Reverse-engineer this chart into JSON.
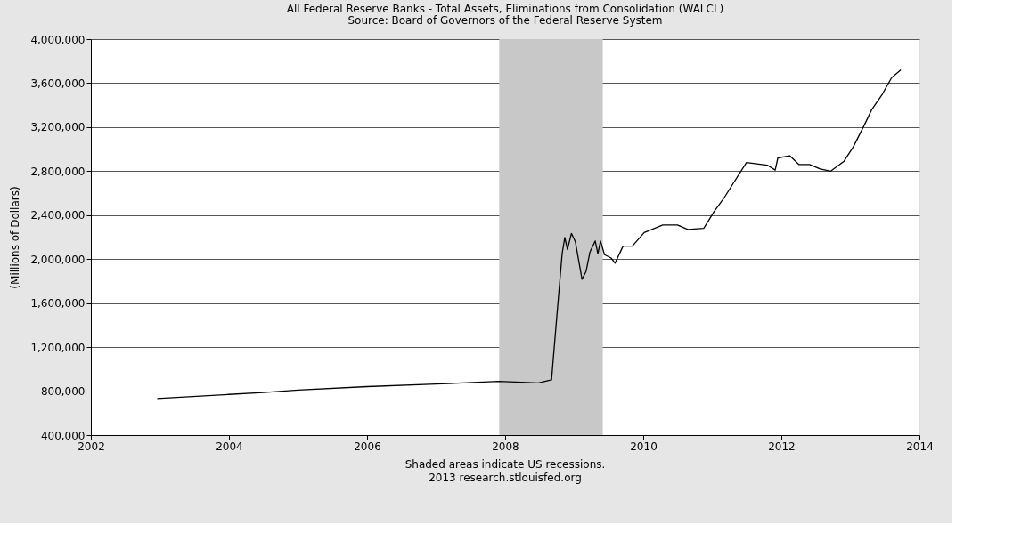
{
  "chart_data": {
    "type": "line",
    "title": "All Federal Reserve Banks - Total Assets, Eliminations from Consolidation (WALCL)",
    "subtitle": "Source: Board of Governors of the Federal Reserve System",
    "ylabel": "(Millions of Dollars)",
    "annotations": [
      "Shaded areas indicate US recessions.",
      "2013 research.stlouisfed.org"
    ],
    "x": [
      "2002-12-18",
      "2004-01-01",
      "2004-07-01",
      "2005-01-01",
      "2006-01-01",
      "2007-01-01",
      "2007-11-28",
      "2008-06-25",
      "2008-09-03",
      "2008-10-01",
      "2008-10-29",
      "2008-11-12",
      "2008-11-26",
      "2008-12-17",
      "2009-01-07",
      "2009-02-11",
      "2009-03-04",
      "2009-03-25",
      "2009-04-22",
      "2009-05-06",
      "2009-05-20",
      "2009-06-10",
      "2009-07-15",
      "2009-08-05",
      "2009-09-16",
      "2009-11-04",
      "2010-01-06",
      "2010-04-14",
      "2010-07-01",
      "2010-08-25",
      "2010-11-17",
      "2011-01-12",
      "2011-03-02",
      "2011-07-01",
      "2011-10-19",
      "2011-11-30",
      "2011-12-14",
      "2012-02-15",
      "2012-04-04",
      "2012-05-30",
      "2012-07-25",
      "2012-09-19",
      "2012-11-28",
      "2013-01-16",
      "2013-03-13",
      "2013-04-24",
      "2013-06-19",
      "2013-08-07",
      "2013-09-25"
    ],
    "series": [
      {
        "color": "#000000",
        "values": [
          733000,
          770000,
          787000,
          810000,
          841000,
          864000,
          888000,
          874000,
          903000,
          1484000,
          2050000,
          2196000,
          2087000,
          2234000,
          2157000,
          1816000,
          1886000,
          2064000,
          2165000,
          2050000,
          2165000,
          2040000,
          2010000,
          1963000,
          2118000,
          2118000,
          2242000,
          2310000,
          2310000,
          2270000,
          2280000,
          2435000,
          2550000,
          2878000,
          2855000,
          2810000,
          2920000,
          2940000,
          2860000,
          2860000,
          2820000,
          2800000,
          2890000,
          3020000,
          3210000,
          3360000,
          3500000,
          3650000,
          3720000
        ]
      }
    ],
    "xlim": [
      "2002-01-01",
      "2014-01-01"
    ],
    "xticks": [
      "2002",
      "2004",
      "2006",
      "2008",
      "2010",
      "2012",
      "2014"
    ],
    "ylim": [
      400000,
      4000000
    ],
    "yticks": [
      {
        "value": 400000,
        "label": "400,000"
      },
      {
        "value": 800000,
        "label": "800,000"
      },
      {
        "value": 1200000,
        "label": "1,200,000"
      },
      {
        "value": 1600000,
        "label": "1,600,000"
      },
      {
        "value": 2000000,
        "label": "2,000,000"
      },
      {
        "value": 2400000,
        "label": "2,400,000"
      },
      {
        "value": 2800000,
        "label": "2,800,000"
      },
      {
        "value": 3200000,
        "label": "3,200,000"
      },
      {
        "value": 3600000,
        "label": "3,600,000"
      },
      {
        "value": 4000000,
        "label": "4,000,000"
      }
    ],
    "bands": [
      {
        "axis": "x",
        "from": "2007-12-01",
        "to": "2009-06-01",
        "color": "#c8c8c8"
      }
    ],
    "grid": "y",
    "marker": "none",
    "line_style": "solid"
  }
}
